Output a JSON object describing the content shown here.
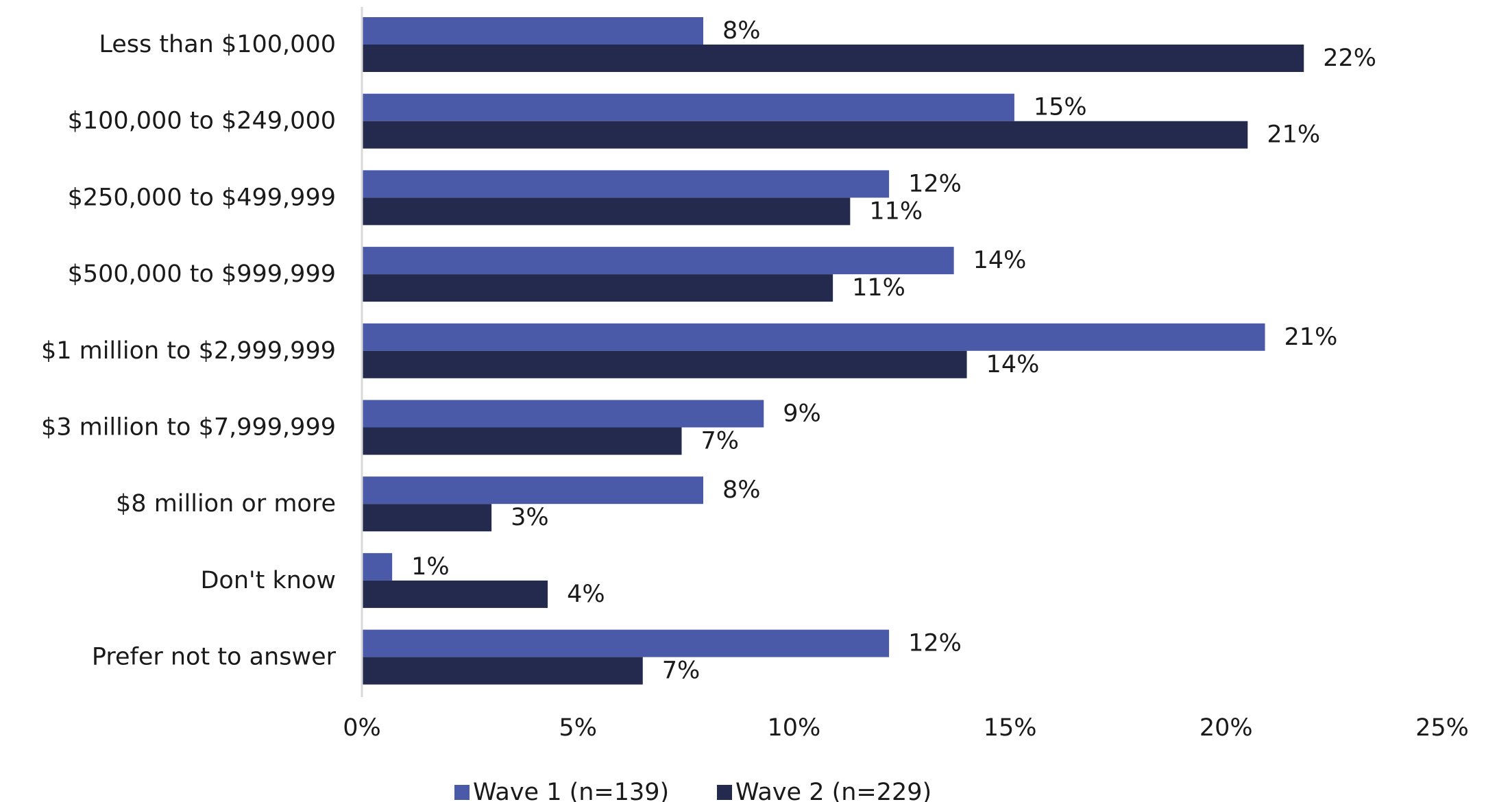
{
  "chart_data": {
    "type": "bar",
    "orientation": "horizontal",
    "categories": [
      "Less than $100,000",
      "$100,000 to $249,000",
      "$250,000 to $499,999",
      "$500,000 to $999,999",
      "$1 million to $2,999,999",
      "$3 million to $7,999,999",
      "$8 million or more",
      "Don't know",
      "Prefer not to answer"
    ],
    "series": [
      {
        "name": "Wave 1 (n=139)",
        "color": "#4a5aa8",
        "values": [
          8,
          15,
          12,
          14,
          21,
          9,
          8,
          1,
          12
        ],
        "labels": [
          "8%",
          "15%",
          "12%",
          "14%",
          "21%",
          "9%",
          "8%",
          "1%",
          "12%"
        ],
        "bar_values": [
          7.9,
          15.1,
          12.2,
          13.7,
          20.9,
          9.3,
          7.9,
          0.7,
          12.2
        ]
      },
      {
        "name": "Wave 2 (n=229)",
        "color": "#242a4d",
        "values": [
          22,
          21,
          11,
          11,
          14,
          7,
          3,
          4,
          7
        ],
        "labels": [
          "22%",
          "21%",
          "11%",
          "11%",
          "14%",
          "7%",
          "3%",
          "4%",
          "7%"
        ],
        "bar_values": [
          21.8,
          20.5,
          11.3,
          10.9,
          14.0,
          7.4,
          3.0,
          4.3,
          6.5
        ]
      }
    ],
    "xlim": [
      0,
      25
    ],
    "ticks": [
      0,
      5,
      10,
      15,
      20,
      25
    ],
    "tick_labels": [
      "0%",
      "5%",
      "10%",
      "15%",
      "20%",
      "25%"
    ],
    "grid": false,
    "legend_position": "bottom-center",
    "title": "",
    "xlabel": "",
    "ylabel": ""
  }
}
